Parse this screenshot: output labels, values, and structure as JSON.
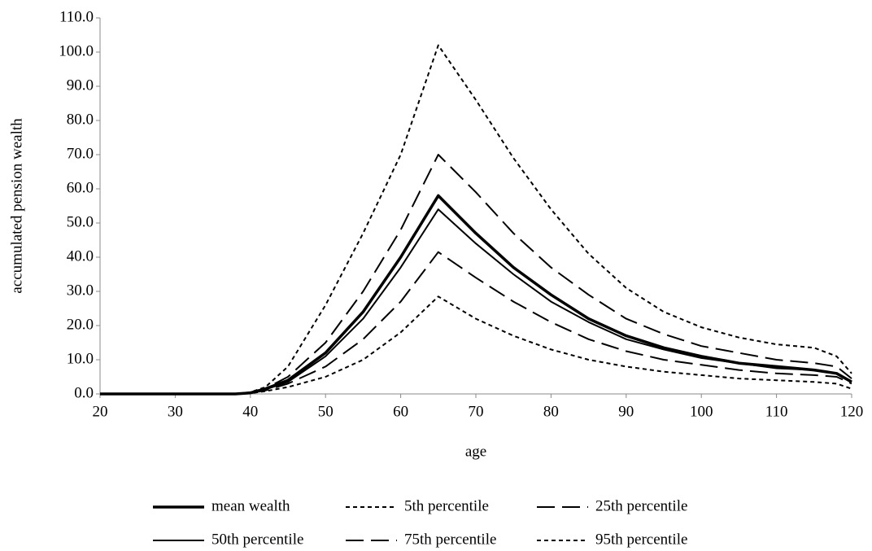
{
  "chart_data": {
    "type": "line",
    "x_label": "age",
    "y_label": "accumulated pension  wealth",
    "x": [
      20,
      30,
      38,
      40,
      42,
      45,
      50,
      55,
      60,
      65,
      70,
      75,
      80,
      85,
      90,
      95,
      100,
      105,
      110,
      115,
      118,
      120
    ],
    "series": [
      {
        "name": "mean wealth",
        "color": "#000000",
        "style": "solid",
        "width": 3.5,
        "values": [
          0,
          0,
          0,
          0.3,
          1.5,
          4,
          12,
          24,
          40,
          58,
          47,
          37,
          29,
          22,
          17,
          13.5,
          11,
          9,
          8,
          7,
          6,
          3.5
        ]
      },
      {
        "name": "5th percentile",
        "color": "#000000",
        "style": "short-dash",
        "width": 2,
        "values": [
          0,
          0,
          0,
          0.2,
          0.8,
          2,
          5,
          10,
          18,
          28.5,
          22,
          17,
          13,
          10,
          8,
          6.5,
          5.5,
          4.5,
          4,
          3.5,
          3,
          1.5
        ]
      },
      {
        "name": "25th percentile",
        "color": "#000000",
        "style": "long-dash",
        "width": 2,
        "values": [
          0,
          0,
          0,
          0.2,
          1,
          3,
          8,
          16,
          27,
          41.5,
          34,
          27,
          21,
          16,
          12.5,
          10,
          8.5,
          7,
          6,
          5.5,
          5,
          3
        ]
      },
      {
        "name": "50th percentile",
        "color": "#000000",
        "style": "solid",
        "width": 2,
        "values": [
          0,
          0,
          0,
          0.3,
          1.3,
          3.5,
          11,
          22,
          37,
          54,
          44,
          35,
          27,
          21,
          16,
          13,
          10.5,
          9,
          7.5,
          7,
          6,
          3.5
        ]
      },
      {
        "name": "75th percentile",
        "color": "#000000",
        "style": "long-dash",
        "width": 2,
        "values": [
          0,
          0,
          0,
          0.3,
          1.6,
          5,
          15,
          30,
          48,
          70,
          59,
          47,
          37,
          29,
          22,
          17.5,
          14,
          12,
          10,
          9,
          8,
          4.5
        ]
      },
      {
        "name": "95th percentile",
        "color": "#000000",
        "style": "short-dash",
        "width": 2,
        "values": [
          0,
          0,
          0,
          0.5,
          2,
          8,
          26,
          47,
          70,
          102,
          86,
          69,
          54,
          41,
          31,
          24,
          19.5,
          16.5,
          14.5,
          13.5,
          11,
          6
        ]
      }
    ],
    "xlim": [
      20,
      120
    ],
    "xticks": [
      20,
      30,
      40,
      50,
      60,
      70,
      80,
      90,
      100,
      110,
      120
    ],
    "ylim": [
      0,
      110
    ],
    "yticks": [
      {
        "value": 0,
        "label": "0.0"
      },
      {
        "value": 10,
        "label": "10.0"
      },
      {
        "value": 20,
        "label": "20.0"
      },
      {
        "value": 30,
        "label": "30.0"
      },
      {
        "value": 40,
        "label": "40.0"
      },
      {
        "value": 50,
        "label": "50.0"
      },
      {
        "value": 60,
        "label": "60.0"
      },
      {
        "value": 70,
        "label": "70.0"
      },
      {
        "value": 80,
        "label": "80.0"
      },
      {
        "value": 90,
        "label": "90.0"
      },
      {
        "value": 100,
        "label": "100.0"
      },
      {
        "value": 110,
        "label": "110.0"
      }
    ],
    "grid": false,
    "legend": "bottom"
  }
}
